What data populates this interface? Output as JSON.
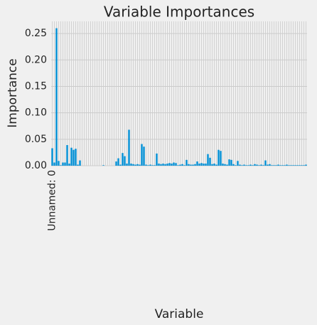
{
  "chart_data": {
    "type": "bar",
    "title": "Variable Importances",
    "xlabel": "Variable",
    "ylabel": "Importance",
    "color": "#008fd5",
    "grid": true,
    "categories": [
      "Unnamed: 0",
      null,
      null,
      null,
      null,
      null,
      null,
      null,
      null,
      null,
      null,
      null,
      null,
      null,
      null,
      null,
      null,
      null,
      null,
      null,
      null,
      null,
      null,
      null,
      null,
      null,
      null,
      null,
      null,
      null,
      null,
      null,
      null,
      null,
      null,
      null,
      null,
      null,
      null,
      null,
      null,
      null,
      null,
      null,
      null,
      null,
      null,
      null,
      null,
      null,
      null,
      null,
      null,
      null,
      null,
      null,
      null,
      null,
      null,
      null,
      null,
      null,
      null,
      null,
      null,
      null,
      null,
      null,
      null,
      null,
      null,
      null,
      null,
      null,
      null,
      null,
      null,
      null,
      null,
      null,
      null,
      null,
      null,
      null,
      null,
      null,
      null,
      null,
      null,
      null,
      null,
      null,
      null,
      null,
      null,
      null,
      null,
      null,
      null,
      null,
      null,
      null,
      null,
      null,
      null,
      null,
      null,
      null,
      null,
      null,
      null,
      null,
      null,
      null,
      null,
      null,
      null,
      null,
      null,
      null
    ],
    "values": [
      0.033,
      0.006,
      0.26,
      0.009,
      0.001,
      0.006,
      0.006,
      0.039,
      0.004,
      0.034,
      0.03,
      0.032,
      0.002,
      0.01,
      0,
      0,
      0,
      0,
      0,
      0,
      0,
      0,
      0,
      0,
      0.001,
      0,
      0,
      0,
      0,
      0,
      0.008,
      0.014,
      0.002,
      0.024,
      0.018,
      0.004,
      0.068,
      0.004,
      0.003,
      0.002,
      0.003,
      0.002,
      0.041,
      0.036,
      0.002,
      0.001,
      0.002,
      0.001,
      0.001,
      0.023,
      0.004,
      0.003,
      0.004,
      0.003,
      0.004,
      0.005,
      0.004,
      0.006,
      0.005,
      0.001,
      0.002,
      0.003,
      0.001,
      0.011,
      0.003,
      0.002,
      0.002,
      0.003,
      0.008,
      0.004,
      0.005,
      0.004,
      0.004,
      0.022,
      0.015,
      0.003,
      0.004,
      0.002,
      0.03,
      0.028,
      0.004,
      0.003,
      0.002,
      0.012,
      0.011,
      0.003,
      0.001,
      0.009,
      0.002,
      0.001,
      0.002,
      0.001,
      0.001,
      0.002,
      0.001,
      0.003,
      0.002,
      0.001,
      0.002,
      0.001,
      0.01,
      0.002,
      0.003,
      0.001,
      0.001,
      0.001,
      0.002,
      0.001,
      0.001,
      0.001,
      0.002,
      0.001,
      0.001,
      0.001,
      0.001,
      0.001,
      0.001,
      0.001,
      0.001,
      0.002
    ],
    "ylim": [
      0,
      0.273
    ],
    "yticks": [
      {
        "value": 0,
        "label": "0.00"
      },
      {
        "value": 0.05,
        "label": "0.05"
      },
      {
        "value": 0.1,
        "label": "0.10"
      },
      {
        "value": 0.15,
        "label": "0.15"
      },
      {
        "value": 0.2,
        "label": "0.20"
      },
      {
        "value": 0.25,
        "label": "0.25"
      }
    ]
  }
}
